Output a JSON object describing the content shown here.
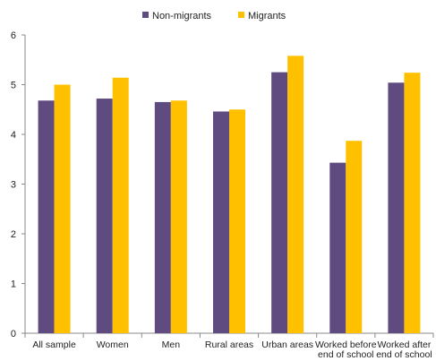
{
  "chart_data": {
    "type": "bar",
    "categories": [
      [
        "All sample"
      ],
      [
        "Women"
      ],
      [
        "Men"
      ],
      [
        "Rural areas"
      ],
      [
        "Urban areas"
      ],
      [
        "Worked before",
        "end of school"
      ],
      [
        "Worked after",
        "end of school"
      ]
    ],
    "series": [
      {
        "name": "Non-migrants",
        "color": "#5f4b80",
        "values": [
          4.68,
          4.72,
          4.65,
          4.46,
          5.25,
          3.43,
          5.04
        ]
      },
      {
        "name": "Migrants",
        "color": "#ffc000",
        "values": [
          5.0,
          5.14,
          4.68,
          4.5,
          5.58,
          3.87,
          5.24
        ]
      }
    ],
    "y_ticks": [
      "0",
      "1",
      "2",
      "3",
      "4",
      "5",
      "6"
    ],
    "ylim": [
      0,
      6
    ],
    "grid": false,
    "legend_position": "top-center",
    "title": "",
    "xlabel": "",
    "ylabel": ""
  }
}
